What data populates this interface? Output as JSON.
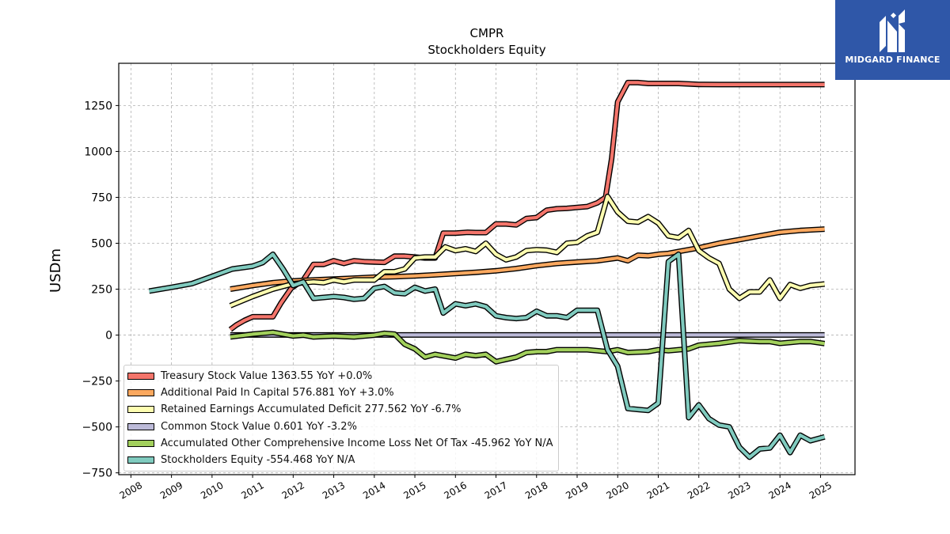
{
  "logo": {
    "brand": "MIDGARD FINANCE"
  },
  "chart_data": {
    "type": "line",
    "title": "CMPR",
    "subtitle": "Stockholders  Equity",
    "xlabel": "",
    "ylabel": "USDm",
    "xlim": [
      2007.7,
      2025.85
    ],
    "ylim": [
      -760,
      1480
    ],
    "grid": true,
    "legend_position": "lower-left",
    "x_ticks": [
      "2008",
      "2009",
      "2010",
      "2011",
      "2012",
      "2013",
      "2014",
      "2015",
      "2016",
      "2017",
      "2018",
      "2019",
      "2020",
      "2021",
      "2022",
      "2023",
      "2024",
      "2025"
    ],
    "y_ticks": [
      -750,
      -500,
      -250,
      0,
      250,
      500,
      750,
      1000,
      1250
    ],
    "y_tick_labels": [
      "−750",
      "−500",
      "−250",
      "0",
      "250",
      "500",
      "750",
      "1000",
      "1250"
    ],
    "series": [
      {
        "name": "Treasury Stock Value",
        "legend_label": "Treasury Stock Value  1363.55 YoY +0.0%",
        "color": "#f4756b",
        "points": [
          [
            2010.45,
            30
          ],
          [
            2010.6,
            55
          ],
          [
            2010.8,
            80
          ],
          [
            2011.0,
            100
          ],
          [
            2011.5,
            100
          ],
          [
            2011.7,
            175
          ],
          [
            2011.95,
            255
          ],
          [
            2012.25,
            300
          ],
          [
            2012.5,
            385
          ],
          [
            2012.75,
            385
          ],
          [
            2013.0,
            405
          ],
          [
            2013.25,
            390
          ],
          [
            2013.5,
            405
          ],
          [
            2013.75,
            400
          ],
          [
            2014.0,
            398
          ],
          [
            2014.25,
            396
          ],
          [
            2014.5,
            430
          ],
          [
            2014.75,
            430
          ],
          [
            2015.0,
            425
          ],
          [
            2015.25,
            420
          ],
          [
            2015.5,
            420
          ],
          [
            2015.7,
            555
          ],
          [
            2016.0,
            555
          ],
          [
            2016.3,
            560
          ],
          [
            2016.5,
            558
          ],
          [
            2016.75,
            558
          ],
          [
            2017.0,
            605
          ],
          [
            2017.25,
            605
          ],
          [
            2017.5,
            600
          ],
          [
            2017.75,
            635
          ],
          [
            2018.0,
            640
          ],
          [
            2018.25,
            680
          ],
          [
            2018.5,
            688
          ],
          [
            2018.75,
            690
          ],
          [
            2019.0,
            695
          ],
          [
            2019.25,
            700
          ],
          [
            2019.5,
            720
          ],
          [
            2019.7,
            750
          ],
          [
            2019.85,
            960
          ],
          [
            2020.0,
            1270
          ],
          [
            2020.25,
            1375
          ],
          [
            2020.5,
            1375
          ],
          [
            2020.75,
            1370
          ],
          [
            2021.0,
            1370
          ],
          [
            2021.5,
            1370
          ],
          [
            2022.0,
            1365
          ],
          [
            2022.5,
            1364
          ],
          [
            2023.0,
            1364
          ],
          [
            2024.0,
            1364
          ],
          [
            2025.1,
            1364
          ]
        ]
      },
      {
        "name": "Additional Paid In Capital",
        "legend_label": "Additional Paid In Capital  576.881 YoY +3.0%",
        "color": "#fba85f",
        "points": [
          [
            2010.45,
            250
          ],
          [
            2011.0,
            270
          ],
          [
            2011.5,
            285
          ],
          [
            2012.0,
            295
          ],
          [
            2012.5,
            300
          ],
          [
            2013.0,
            305
          ],
          [
            2013.5,
            310
          ],
          [
            2014.0,
            315
          ],
          [
            2014.5,
            318
          ],
          [
            2015.0,
            322
          ],
          [
            2015.5,
            328
          ],
          [
            2016.0,
            335
          ],
          [
            2016.5,
            342
          ],
          [
            2017.0,
            350
          ],
          [
            2017.5,
            362
          ],
          [
            2018.0,
            378
          ],
          [
            2018.5,
            390
          ],
          [
            2019.0,
            398
          ],
          [
            2019.5,
            405
          ],
          [
            2020.0,
            420
          ],
          [
            2020.25,
            405
          ],
          [
            2020.5,
            435
          ],
          [
            2020.75,
            432
          ],
          [
            2021.0,
            440
          ],
          [
            2021.25,
            445
          ],
          [
            2021.5,
            455
          ],
          [
            2022.0,
            475
          ],
          [
            2022.5,
            500
          ],
          [
            2023.0,
            520
          ],
          [
            2023.5,
            540
          ],
          [
            2024.0,
            560
          ],
          [
            2024.5,
            570
          ],
          [
            2025.1,
            577
          ]
        ]
      },
      {
        "name": "Retained Earnings Accumulated Deficit",
        "legend_label": "Retained Earnings Accumulated Deficit  277.562 YoY -6.7%",
        "color": "#fdfdb0",
        "points": [
          [
            2010.45,
            160
          ],
          [
            2011.0,
            210
          ],
          [
            2011.5,
            250
          ],
          [
            2012.0,
            280
          ],
          [
            2012.5,
            290
          ],
          [
            2012.75,
            285
          ],
          [
            2013.0,
            300
          ],
          [
            2013.25,
            290
          ],
          [
            2013.5,
            300
          ],
          [
            2014.0,
            300
          ],
          [
            2014.25,
            345
          ],
          [
            2014.5,
            345
          ],
          [
            2014.75,
            360
          ],
          [
            2015.0,
            420
          ],
          [
            2015.25,
            425
          ],
          [
            2015.5,
            425
          ],
          [
            2015.75,
            480
          ],
          [
            2016.0,
            460
          ],
          [
            2016.25,
            470
          ],
          [
            2016.5,
            455
          ],
          [
            2016.75,
            500
          ],
          [
            2017.0,
            440
          ],
          [
            2017.25,
            410
          ],
          [
            2017.5,
            425
          ],
          [
            2017.75,
            460
          ],
          [
            2018.0,
            465
          ],
          [
            2018.25,
            462
          ],
          [
            2018.5,
            450
          ],
          [
            2018.75,
            500
          ],
          [
            2019.0,
            505
          ],
          [
            2019.25,
            540
          ],
          [
            2019.5,
            560
          ],
          [
            2019.75,
            755
          ],
          [
            2020.0,
            670
          ],
          [
            2020.25,
            620
          ],
          [
            2020.5,
            615
          ],
          [
            2020.75,
            645
          ],
          [
            2021.0,
            610
          ],
          [
            2021.25,
            540
          ],
          [
            2021.5,
            530
          ],
          [
            2021.75,
            570
          ],
          [
            2022.0,
            460
          ],
          [
            2022.25,
            420
          ],
          [
            2022.5,
            390
          ],
          [
            2022.75,
            250
          ],
          [
            2023.0,
            200
          ],
          [
            2023.25,
            235
          ],
          [
            2023.5,
            235
          ],
          [
            2023.75,
            300
          ],
          [
            2024.0,
            200
          ],
          [
            2024.25,
            275
          ],
          [
            2024.5,
            255
          ],
          [
            2024.75,
            270
          ],
          [
            2025.1,
            278
          ]
        ]
      },
      {
        "name": "Common Stock Value",
        "legend_label": "Common Stock Value  0.601 YoY -3.2%",
        "color": "#bcbad8",
        "points": [
          [
            2010.45,
            0.6
          ],
          [
            2025.1,
            0.6
          ]
        ]
      },
      {
        "name": "Accumulated Other Comprehensive Income Loss Net Of Tax",
        "legend_label": "Accumulated Other Comprehensive Income Loss Net Of Tax  -45.962 YoY N/A",
        "color": "#a2d05c",
        "points": [
          [
            2010.45,
            -10
          ],
          [
            2011.0,
            5
          ],
          [
            2011.5,
            15
          ],
          [
            2012.0,
            -5
          ],
          [
            2012.25,
            0
          ],
          [
            2012.5,
            -10
          ],
          [
            2013.0,
            -5
          ],
          [
            2013.5,
            -10
          ],
          [
            2014.0,
            0
          ],
          [
            2014.25,
            10
          ],
          [
            2014.5,
            5
          ],
          [
            2014.75,
            -50
          ],
          [
            2015.0,
            -75
          ],
          [
            2015.25,
            -120
          ],
          [
            2015.5,
            -105
          ],
          [
            2016.0,
            -125
          ],
          [
            2016.25,
            -105
          ],
          [
            2016.5,
            -112
          ],
          [
            2016.75,
            -105
          ],
          [
            2017.0,
            -145
          ],
          [
            2017.5,
            -120
          ],
          [
            2017.75,
            -95
          ],
          [
            2018.0,
            -90
          ],
          [
            2018.25,
            -90
          ],
          [
            2018.5,
            -80
          ],
          [
            2019.0,
            -80
          ],
          [
            2019.25,
            -80
          ],
          [
            2019.5,
            -85
          ],
          [
            2019.75,
            -90
          ],
          [
            2020.0,
            -80
          ],
          [
            2020.25,
            -95
          ],
          [
            2020.75,
            -90
          ],
          [
            2021.0,
            -80
          ],
          [
            2021.25,
            -85
          ],
          [
            2021.5,
            -80
          ],
          [
            2021.75,
            -75
          ],
          [
            2022.0,
            -55
          ],
          [
            2022.5,
            -45
          ],
          [
            2023.0,
            -30
          ],
          [
            2023.5,
            -35
          ],
          [
            2023.75,
            -35
          ],
          [
            2024.0,
            -45
          ],
          [
            2024.25,
            -40
          ],
          [
            2024.5,
            -35
          ],
          [
            2024.75,
            -35
          ],
          [
            2025.1,
            -46
          ]
        ]
      },
      {
        "name": "Stockholders Equity",
        "legend_label": "Stockholders Equity  -554.468 YoY N/A",
        "color": "#80cbbf",
        "points": [
          [
            2008.45,
            240
          ],
          [
            2009.0,
            260
          ],
          [
            2009.5,
            280
          ],
          [
            2010.0,
            320
          ],
          [
            2010.5,
            360
          ],
          [
            2011.0,
            375
          ],
          [
            2011.25,
            395
          ],
          [
            2011.5,
            440
          ],
          [
            2011.75,
            360
          ],
          [
            2012.0,
            270
          ],
          [
            2012.25,
            290
          ],
          [
            2012.5,
            200
          ],
          [
            2012.75,
            205
          ],
          [
            2013.0,
            210
          ],
          [
            2013.25,
            205
          ],
          [
            2013.5,
            195
          ],
          [
            2013.75,
            200
          ],
          [
            2014.0,
            255
          ],
          [
            2014.25,
            265
          ],
          [
            2014.5,
            230
          ],
          [
            2014.75,
            225
          ],
          [
            2015.0,
            260
          ],
          [
            2015.25,
            240
          ],
          [
            2015.5,
            250
          ],
          [
            2015.7,
            120
          ],
          [
            2016.0,
            170
          ],
          [
            2016.25,
            160
          ],
          [
            2016.5,
            170
          ],
          [
            2016.75,
            155
          ],
          [
            2017.0,
            105
          ],
          [
            2017.25,
            95
          ],
          [
            2017.5,
            90
          ],
          [
            2017.75,
            95
          ],
          [
            2018.0,
            130
          ],
          [
            2018.25,
            105
          ],
          [
            2018.5,
            105
          ],
          [
            2018.75,
            95
          ],
          [
            2019.0,
            135
          ],
          [
            2019.25,
            135
          ],
          [
            2019.5,
            135
          ],
          [
            2019.75,
            -80
          ],
          [
            2020.0,
            -170
          ],
          [
            2020.25,
            -400
          ],
          [
            2020.5,
            -405
          ],
          [
            2020.75,
            -410
          ],
          [
            2021.0,
            -370
          ],
          [
            2021.25,
            400
          ],
          [
            2021.5,
            440
          ],
          [
            2021.75,
            -450
          ],
          [
            2022.0,
            -380
          ],
          [
            2022.25,
            -455
          ],
          [
            2022.5,
            -490
          ],
          [
            2022.75,
            -500
          ],
          [
            2023.0,
            -610
          ],
          [
            2023.25,
            -665
          ],
          [
            2023.5,
            -620
          ],
          [
            2023.75,
            -615
          ],
          [
            2024.0,
            -545
          ],
          [
            2024.25,
            -640
          ],
          [
            2024.5,
            -545
          ],
          [
            2024.75,
            -575
          ],
          [
            2025.1,
            -554
          ]
        ]
      }
    ]
  }
}
